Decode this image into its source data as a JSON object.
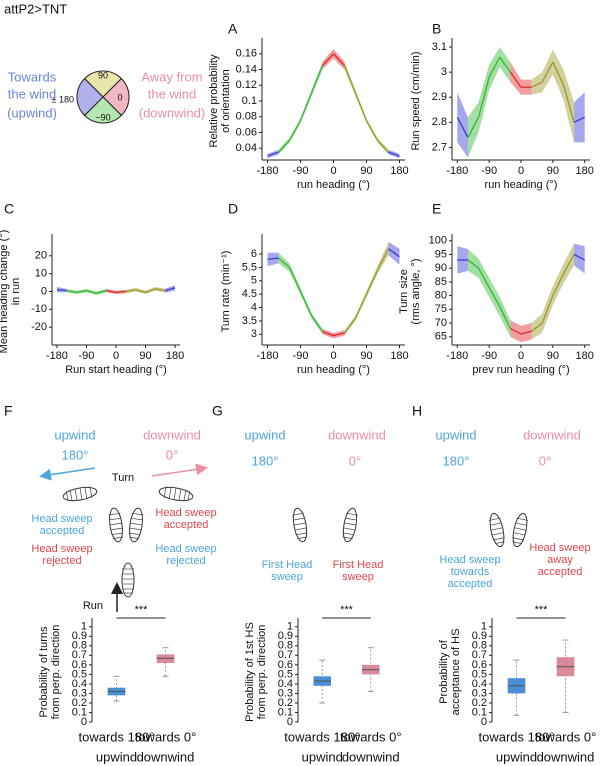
{
  "figure_title": "attP2>TNT",
  "orientation_key": {
    "upwind_label": [
      "Towards",
      "the wind"
    ],
    "upwind_tag": "(upwind)",
    "downwind_label": [
      "Away from",
      "the wind"
    ],
    "downwind_tag": "(downwind)",
    "sector_top": "90",
    "sector_right": "0",
    "sector_bottom": "−90",
    "sector_left": "± 180"
  },
  "chart_data": [
    {
      "panel": "A",
      "type": "line",
      "y_label": [
        "Relative probability",
        "of orientation"
      ],
      "x_label": "run heading (°)",
      "x": [
        -180,
        -150,
        -120,
        -90,
        -60,
        -30,
        0,
        30,
        60,
        90,
        120,
        150,
        180
      ],
      "values": [
        0.03,
        0.035,
        0.05,
        0.075,
        0.11,
        0.145,
        0.16,
        0.145,
        0.11,
        0.075,
        0.05,
        0.035,
        0.03
      ],
      "errors": [
        0.003,
        0.003,
        0.003,
        0.003,
        0.004,
        0.005,
        0.006,
        0.005,
        0.004,
        0.003,
        0.003,
        0.003,
        0.003
      ],
      "colors": [
        "#3b3bd6",
        "#33b833",
        "#33b833",
        "#33b833",
        "#33b833",
        "#e02828",
        "#e02828",
        "#9a9a2a",
        "#9a9a2a",
        "#9a9a2a",
        "#9a9a2a",
        "#3b3bd6"
      ],
      "xlim": [
        -195,
        195
      ],
      "xticks": [
        -180,
        -90,
        0,
        90,
        180
      ],
      "ylim": [
        0.025,
        0.175
      ],
      "yticks": [
        0.04,
        0.06,
        0.08,
        0.1,
        0.12,
        0.14,
        0.16
      ]
    },
    {
      "panel": "B",
      "type": "line",
      "y_label": [
        "Run speed (cm/min)"
      ],
      "x_label": "run heading (°)",
      "x": [
        -180,
        -150,
        -120,
        -90,
        -60,
        -30,
        0,
        30,
        60,
        90,
        120,
        150,
        180
      ],
      "values": [
        2.82,
        2.74,
        2.82,
        2.98,
        3.06,
        3.0,
        2.94,
        2.94,
        2.96,
        3.04,
        2.95,
        2.8,
        2.82
      ],
      "errors": [
        0.1,
        0.08,
        0.06,
        0.05,
        0.04,
        0.04,
        0.03,
        0.03,
        0.04,
        0.05,
        0.06,
        0.08,
        0.1
      ],
      "colors": [
        "#3b3bd6",
        "#33b833",
        "#33b833",
        "#33b833",
        "#33b833",
        "#e02828",
        "#e02828",
        "#9a9a2a",
        "#9a9a2a",
        "#9a9a2a",
        "#9a9a2a",
        "#3b3bd6"
      ],
      "xlim": [
        -195,
        195
      ],
      "xticks": [
        -180,
        -90,
        0,
        90,
        180
      ],
      "ylim": [
        2.65,
        3.12
      ],
      "yticks": [
        2.7,
        2.8,
        2.9,
        3,
        3.1
      ]
    },
    {
      "panel": "C",
      "type": "line",
      "y_label": [
        "Mean heading change (°)",
        "in run"
      ],
      "x_label": "Run start heading (°)",
      "x": [
        -180,
        -150,
        -120,
        -90,
        -60,
        -30,
        0,
        30,
        60,
        90,
        120,
        150,
        180
      ],
      "values": [
        1,
        0.5,
        -0.5,
        0.5,
        -1,
        0.5,
        -0.5,
        0,
        1,
        -0.5,
        1.5,
        0.5,
        2
      ],
      "errors": [
        1.5,
        1,
        1,
        1,
        1,
        1,
        1,
        1,
        1,
        1,
        1,
        1.2,
        1.5
      ],
      "colors": [
        "#3b3bd6",
        "#33b833",
        "#33b833",
        "#33b833",
        "#33b833",
        "#e02828",
        "#e02828",
        "#9a9a2a",
        "#9a9a2a",
        "#9a9a2a",
        "#9a9a2a",
        "#3b3bd6"
      ],
      "xlim": [
        -195,
        195
      ],
      "xticks": [
        -180,
        -90,
        0,
        90,
        180
      ],
      "ylim": [
        -30,
        30
      ],
      "yticks": [
        -20,
        -10,
        0,
        10,
        20
      ]
    },
    {
      "panel": "D",
      "type": "line",
      "y_label": [
        "Turn rate (min⁻¹)"
      ],
      "x_label": "run heading (°)",
      "x": [
        -180,
        -150,
        -120,
        -90,
        -60,
        -30,
        0,
        30,
        60,
        90,
        120,
        150,
        180
      ],
      "values": [
        5.8,
        5.85,
        5.5,
        4.6,
        3.7,
        3.1,
        2.95,
        3.05,
        3.6,
        4.5,
        5.4,
        6.2,
        5.9
      ],
      "errors": [
        0.25,
        0.2,
        0.15,
        0.12,
        0.1,
        0.1,
        0.1,
        0.1,
        0.1,
        0.12,
        0.15,
        0.25,
        0.3
      ],
      "colors": [
        "#3b3bd6",
        "#33b833",
        "#33b833",
        "#33b833",
        "#33b833",
        "#e02828",
        "#e02828",
        "#9a9a2a",
        "#9a9a2a",
        "#9a9a2a",
        "#9a9a2a",
        "#3b3bd6"
      ],
      "xlim": [
        -195,
        195
      ],
      "xticks": [
        -180,
        -90,
        0,
        90,
        180
      ],
      "ylim": [
        2.6,
        6.6
      ],
      "yticks": [
        3,
        3.5,
        4,
        4.5,
        5,
        5.5,
        6
      ]
    },
    {
      "panel": "E",
      "type": "line",
      "y_label": [
        "Turn size",
        "(rms angle, °)"
      ],
      "x_label": "prev run heading (°)",
      "x": [
        -180,
        -150,
        -120,
        -90,
        -60,
        -30,
        0,
        30,
        60,
        90,
        120,
        150,
        180
      ],
      "values": [
        93,
        93,
        90,
        83,
        76,
        68,
        66,
        67,
        70,
        80,
        88,
        95,
        93
      ],
      "errors": [
        5,
        4,
        3.5,
        3.5,
        3.5,
        3,
        3,
        3,
        3.5,
        3.5,
        3.5,
        4,
        5
      ],
      "colors": [
        "#3b3bd6",
        "#33b833",
        "#33b833",
        "#33b833",
        "#33b833",
        "#e02828",
        "#e02828",
        "#9a9a2a",
        "#9a9a2a",
        "#9a9a2a",
        "#9a9a2a",
        "#3b3bd6"
      ],
      "xlim": [
        -195,
        195
      ],
      "xticks": [
        -180,
        -90,
        0,
        90,
        180
      ],
      "ylim": [
        62,
        101
      ],
      "yticks": [
        65,
        70,
        75,
        80,
        85,
        90,
        95,
        100
      ]
    },
    {
      "panel": "F",
      "type": "box",
      "y_label": [
        "Probability of turns",
        "from perp. direction"
      ],
      "categories": [
        "towards 180°",
        "towards 0°"
      ],
      "group_labels": [
        "upwind",
        "downwind"
      ],
      "colors": [
        "#4a8fd4",
        "#d98a9a"
      ],
      "boxes": [
        {
          "whislo": 0.22,
          "q1": 0.28,
          "med": 0.32,
          "q3": 0.36,
          "whishi": 0.48
        },
        {
          "whislo": 0.48,
          "q1": 0.62,
          "med": 0.67,
          "q3": 0.71,
          "whishi": 0.78
        }
      ],
      "significance": "***",
      "ylim": [
        0,
        1.05
      ],
      "yticks": [
        0,
        0.1,
        0.2,
        0.3,
        0.4,
        0.5,
        0.6,
        0.7,
        0.8,
        0.9,
        1
      ]
    },
    {
      "panel": "G",
      "type": "box",
      "y_label": [
        "Probability of 1st HS",
        "from perp. direction"
      ],
      "categories": [
        "towards 180°",
        "towards 0°"
      ],
      "group_labels": [
        "upwind",
        "downwind"
      ],
      "colors": [
        "#4a8fd4",
        "#d98a9a"
      ],
      "boxes": [
        {
          "whislo": 0.2,
          "q1": 0.38,
          "med": 0.43,
          "q3": 0.48,
          "whishi": 0.65
        },
        {
          "whislo": 0.32,
          "q1": 0.5,
          "med": 0.55,
          "q3": 0.6,
          "whishi": 0.78
        }
      ],
      "significance": "***",
      "ylim": [
        0,
        1.05
      ],
      "yticks": [
        0,
        0.1,
        0.2,
        0.3,
        0.4,
        0.5,
        0.6,
        0.7,
        0.8,
        0.9,
        1
      ]
    },
    {
      "panel": "H",
      "type": "box",
      "y_label": [
        "Probability of",
        "acceptance of HS"
      ],
      "categories": [
        "towards 180°",
        "towards 0°"
      ],
      "group_labels": [
        "upwind",
        "downwind"
      ],
      "colors": [
        "#4a8fd4",
        "#d98a9a"
      ],
      "boxes": [
        {
          "whislo": 0.07,
          "q1": 0.3,
          "med": 0.38,
          "q3": 0.46,
          "whishi": 0.65
        },
        {
          "whislo": 0.1,
          "q1": 0.48,
          "med": 0.58,
          "q3": 0.68,
          "whishi": 0.86
        }
      ],
      "significance": "***",
      "ylim": [
        0,
        1.05
      ],
      "yticks": [
        0,
        0.1,
        0.2,
        0.3,
        0.4,
        0.5,
        0.6,
        0.7,
        0.8,
        0.9,
        1
      ]
    }
  ],
  "diagrams": {
    "F": {
      "upwind": "upwind",
      "downwind": "downwind",
      "up_angle": "180°",
      "down_angle": "0°",
      "turn": "Turn",
      "up_accepted": [
        "Head sweep",
        "accepted"
      ],
      "up_rejected": [
        "Head sweep",
        "rejected"
      ],
      "down_accepted": [
        "Head sweep",
        "accepted"
      ],
      "down_rejected": [
        "Head sweep",
        "rejected"
      ],
      "run": "Run"
    },
    "G": {
      "upwind": "upwind",
      "downwind": "downwind",
      "up_angle": "180°",
      "down_angle": "0°",
      "up_first": [
        "First Head",
        "sweep"
      ],
      "down_first": [
        "First Head",
        "sweep"
      ]
    },
    "H": {
      "upwind": "upwind",
      "downwind": "downwind",
      "up_angle": "180°",
      "down_angle": "0°",
      "up_accepted": [
        "Head sweep",
        "towards",
        "accepted"
      ],
      "down_accepted": [
        "Head sweep",
        "away",
        "accepted"
      ]
    }
  }
}
